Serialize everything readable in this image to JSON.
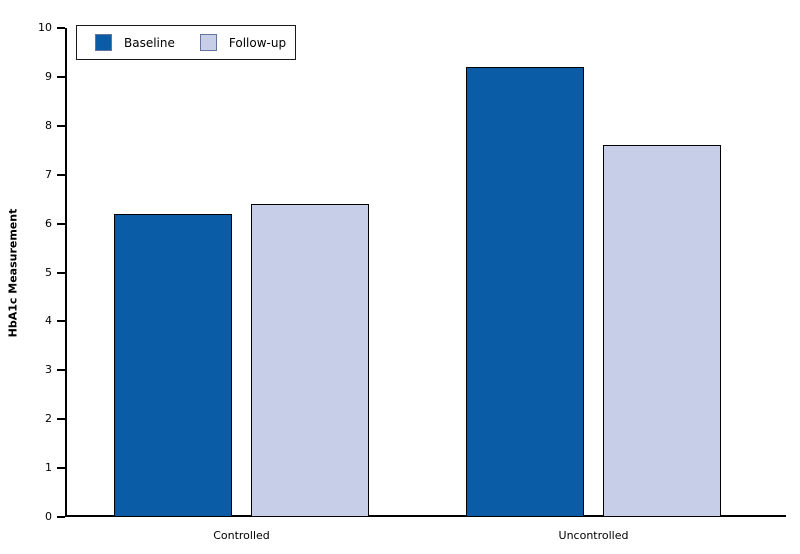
{
  "chart_data": {
    "type": "bar",
    "title": "",
    "categories": [
      "Controlled",
      "Uncontrolled"
    ],
    "series": [
      {
        "name": "Baseline",
        "color": "#0b5ca6",
        "values": [
          6.2,
          9.2
        ]
      },
      {
        "name": "Follow-up",
        "color": "#c7cee8",
        "values": [
          6.4,
          7.6
        ]
      }
    ],
    "xlabel": "",
    "ylabel": "HbA1c Measurement",
    "ylim": [
      0,
      10
    ],
    "yticks": [
      0,
      1,
      2,
      3,
      4,
      5,
      6,
      7,
      8,
      9,
      10
    ],
    "grid": false,
    "legend_position": "top-left",
    "bar_outline_color": "#000000",
    "axis_color": "#000000",
    "background_color": "#ffffff"
  }
}
